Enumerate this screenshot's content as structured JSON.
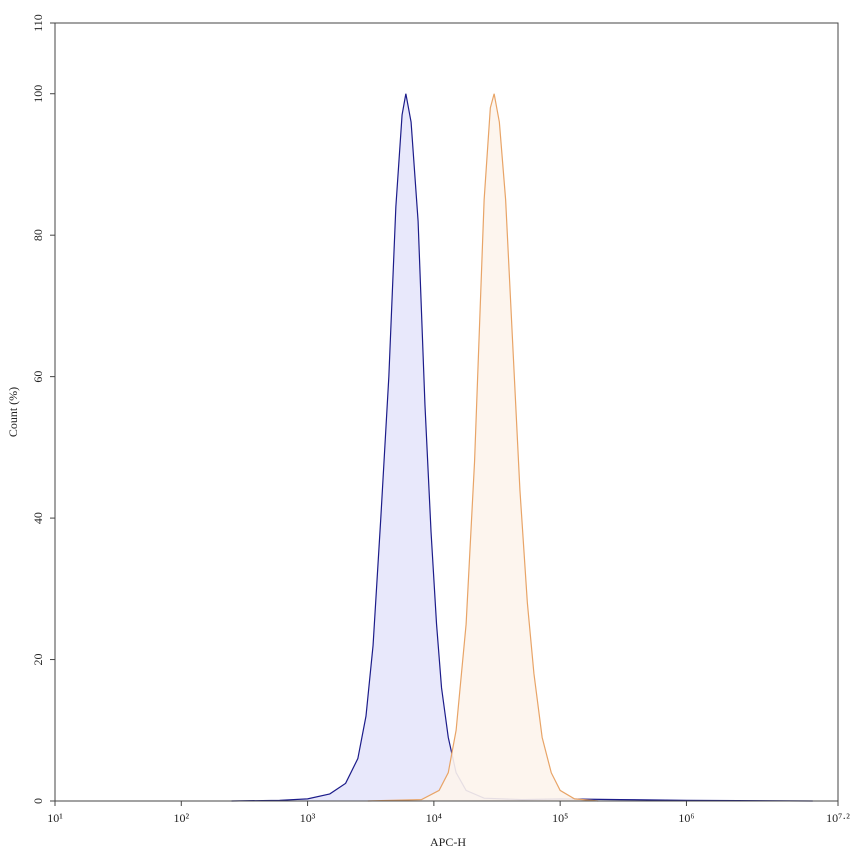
{
  "chart_data": {
    "type": "area",
    "xlabel": "APC-H",
    "ylabel": "Count (%)",
    "xscale": "log",
    "xlim": [
      10,
      15848931.92
    ],
    "xticks": [
      {
        "value": 10,
        "label": "10¹"
      },
      {
        "value": 100,
        "label": "10²"
      },
      {
        "value": 1000,
        "label": "10³"
      },
      {
        "value": 10000,
        "label": "10⁴"
      },
      {
        "value": 100000,
        "label": "10⁵"
      },
      {
        "value": 1000000,
        "label": "10⁶"
      },
      {
        "value": 15848931.92,
        "label": "10⁷·²"
      }
    ],
    "ylim": [
      0,
      110
    ],
    "yticks": [
      0,
      20,
      40,
      60,
      80,
      100,
      110
    ],
    "series": [
      {
        "color": "#1c1c8a",
        "fill": "#e6e6fb",
        "x": [
          250,
          600,
          1000,
          1500,
          2000,
          2500,
          2900,
          3300,
          3800,
          4400,
          5000,
          5600,
          6000,
          6600,
          7500,
          8500,
          9500,
          10500,
          11500,
          13000,
          15000,
          18000,
          25000,
          50000,
          100000,
          300000,
          1000000,
          10000000
        ],
        "values": [
          0,
          0.1,
          0.3,
          1,
          2.5,
          6,
          12,
          22,
          40,
          60,
          84,
          97,
          100,
          96,
          82,
          56,
          38,
          25,
          16,
          9,
          4,
          1.5,
          0.4,
          0.2,
          0.3,
          0.2,
          0.1,
          0
        ]
      },
      {
        "color": "#e8a467",
        "fill": "#fdf4ec",
        "x": [
          3000,
          8000,
          11000,
          13000,
          15000,
          18000,
          21000,
          25000,
          28000,
          30000,
          33000,
          37000,
          42000,
          48000,
          55000,
          62000,
          72000,
          85000,
          100000,
          130000,
          200000
        ],
        "values": [
          0,
          0.2,
          1.5,
          4,
          10,
          25,
          48,
          85,
          98,
          100,
          96,
          85,
          65,
          44,
          28,
          18,
          9,
          4,
          1.5,
          0.3,
          0
        ]
      }
    ]
  }
}
